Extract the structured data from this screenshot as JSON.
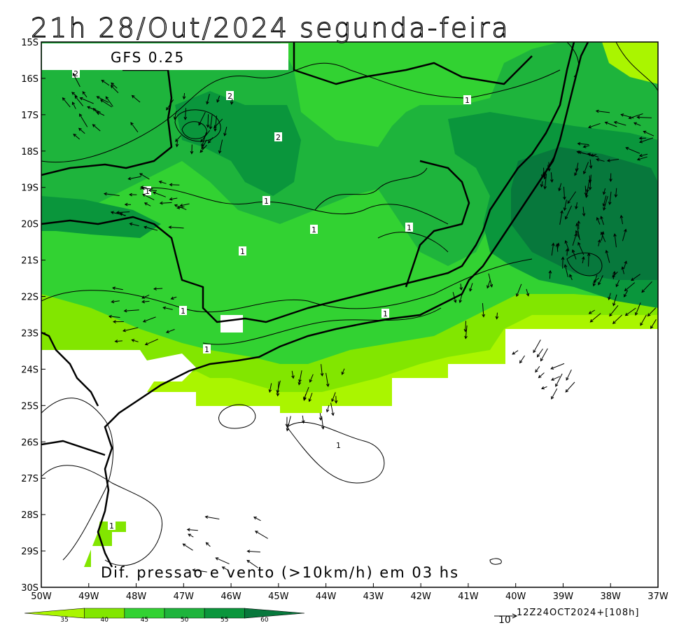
{
  "title": "21h 28/Out/2024 segunda-feira",
  "model_label": "GFS 0.25",
  "bottom_label": "Dif. pressao e vento (>10km/h) em 03 hs",
  "run_stamp": "12Z24OCT2024+[108h]",
  "vector_reference": "10",
  "lat_labels": [
    "15S",
    "16S",
    "17S",
    "18S",
    "19S",
    "20S",
    "21S",
    "22S",
    "23S",
    "24S",
    "25S",
    "26S",
    "27S",
    "28S",
    "29S",
    "30S"
  ],
  "lon_labels": [
    "50W",
    "49W",
    "48W",
    "47W",
    "46W",
    "45W",
    "44W",
    "43W",
    "42W",
    "41W",
    "40W",
    "39W",
    "38W",
    "37W"
  ],
  "colorbar": {
    "labels": [
      "35",
      "40",
      "45",
      "50",
      "55",
      "60"
    ],
    "colors": [
      "#aaf500",
      "#82e600",
      "#32d232",
      "#1eb43c",
      "#0a963c",
      "#07783c"
    ]
  },
  "contour_labels": [
    "2",
    "2",
    "2",
    "1",
    "1",
    "1",
    "1",
    "1",
    "1",
    "1",
    "1",
    "1",
    "1",
    "1"
  ],
  "colors": {
    "light_green": "#aaf500",
    "green": "#32d232",
    "mid_green": "#1eb43c",
    "dark_green": "#0a963c",
    "darkest_green": "#07783c"
  }
}
